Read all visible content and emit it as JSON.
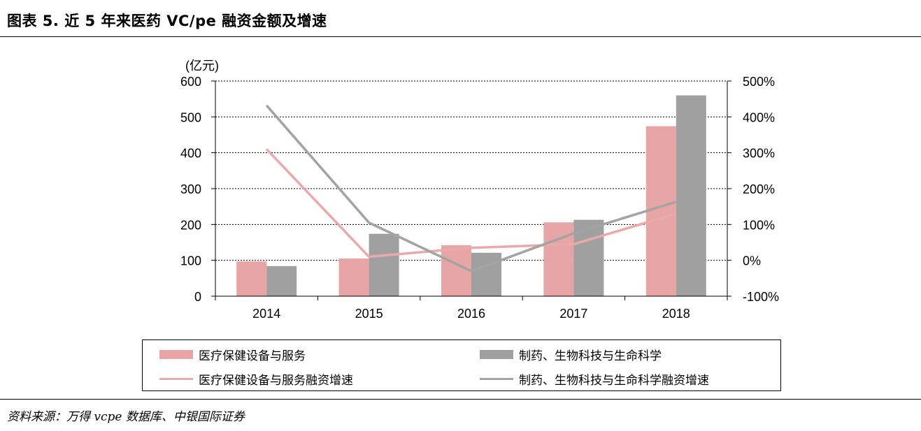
{
  "header": {
    "title": "图表 5. 近 5 年来医药 VC/pe 融资金额及增速"
  },
  "footer": {
    "source": "资料来源：万得 vcpe 数据库、中银国际证券"
  },
  "colors": {
    "pink": "#e8a5a5",
    "gray": "#a0a0a0",
    "pink_line": "#eba9a9",
    "gray_line": "#a3a3a3"
  },
  "chart_data": {
    "type": "bar",
    "categories": [
      "2014",
      "2015",
      "2016",
      "2017",
      "2018"
    ],
    "y_unit_label": "(亿元)",
    "ylim": [
      0,
      600
    ],
    "y_ticks": [
      "0",
      "100",
      "200",
      "300",
      "400",
      "500",
      "600"
    ],
    "y2lim": [
      -100,
      500
    ],
    "y2_ticks": [
      "-100%",
      "0%",
      "100%",
      "200%",
      "300%",
      "400%",
      "500%"
    ],
    "grid": true,
    "legend_position": "bottom",
    "series": [
      {
        "name": "医疗保健设备与服务",
        "kind": "bar",
        "axis": "left",
        "color": "#e8a5a5",
        "values": [
          97,
          105,
          142,
          206,
          474
        ]
      },
      {
        "name": "制药、生物科技与生命科学",
        "kind": "bar",
        "axis": "left",
        "color": "#a0a0a0",
        "values": [
          84,
          174,
          121,
          213,
          560
        ]
      },
      {
        "name": "医疗保健设备与服务融资增速",
        "kind": "line",
        "axis": "right",
        "color": "#eba9a9",
        "values": [
          310,
          10,
          35,
          45,
          130
        ]
      },
      {
        "name": "制药、生物科技与生命科学融资增速",
        "kind": "line",
        "axis": "right",
        "color": "#a3a3a3",
        "values": [
          432,
          105,
          -30,
          75,
          163
        ]
      }
    ]
  }
}
